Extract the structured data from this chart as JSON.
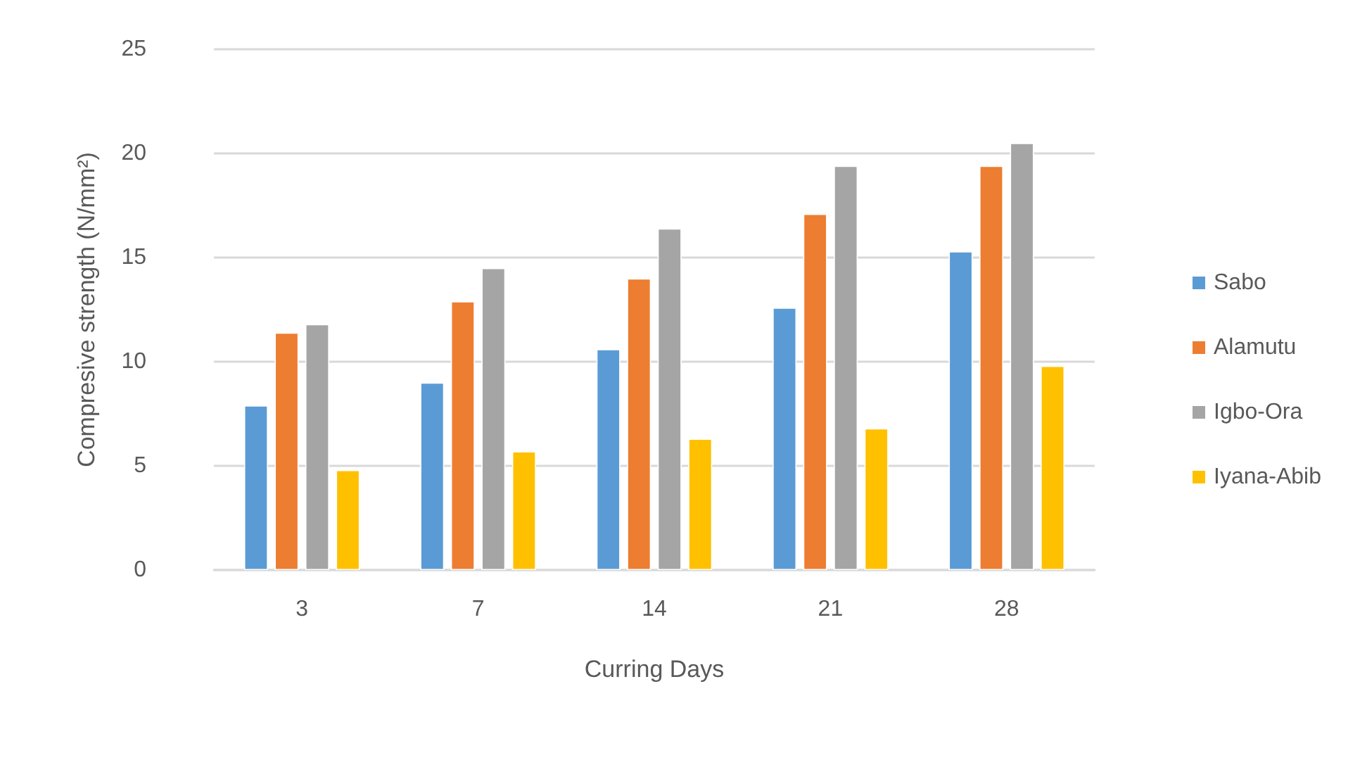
{
  "chart_data": {
    "type": "bar",
    "xlabel": "Curring Days",
    "ylabel": "Compresive strength (N/mm²)",
    "categories": [
      "3",
      "7",
      "14",
      "21",
      "28"
    ],
    "series": [
      {
        "name": "Sabo",
        "color": "#5b9bd5",
        "values": [
          7.9,
          9.0,
          10.6,
          12.6,
          15.3
        ]
      },
      {
        "name": "Alamutu",
        "color": "#ed7d31",
        "values": [
          11.4,
          12.9,
          14.0,
          17.1,
          19.4
        ]
      },
      {
        "name": "Igbo-Ora",
        "color": "#a5a5a5",
        "values": [
          11.8,
          14.5,
          16.4,
          19.4,
          20.5
        ]
      },
      {
        "name": "Iyana-Abib",
        "color": "#ffc000",
        "values": [
          4.8,
          5.7,
          6.3,
          6.8,
          9.8
        ]
      }
    ],
    "ylim": [
      0,
      25
    ],
    "yticks": [
      0,
      5,
      10,
      15,
      20,
      25
    ],
    "grid": "y",
    "legend": "right"
  }
}
